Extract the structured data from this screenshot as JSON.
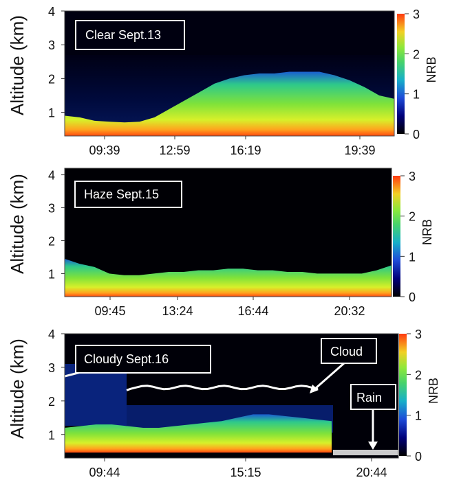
{
  "chart_data": [
    {
      "type": "heatmap",
      "title": "",
      "annotation": "Clear Sept.13",
      "ylabel": "Altitude (km)",
      "ylim": [
        0.3,
        4
      ],
      "yticks": [
        1,
        2,
        3,
        4
      ],
      "xticks": [
        "09:39",
        "12:59",
        "16:19",
        "19:39"
      ],
      "colorbar": {
        "label": "NRB",
        "range": [
          0,
          3
        ],
        "ticks": [
          0,
          1,
          2,
          3
        ]
      },
      "layer_top_km": [
        0.9,
        0.85,
        0.75,
        0.72,
        0.7,
        0.72,
        0.85,
        1.1,
        1.35,
        1.6,
        1.85,
        2.0,
        2.1,
        2.15,
        2.15,
        2.2,
        2.2,
        2.2,
        2.1,
        1.95,
        1.75,
        1.5,
        1.4
      ]
    },
    {
      "type": "heatmap",
      "title": "",
      "annotation": "Haze Sept.15",
      "ylabel": "Altitude (km)",
      "ylim": [
        0.3,
        4.2
      ],
      "yticks": [
        1,
        2,
        3,
        4
      ],
      "xticks": [
        "09:45",
        "13:24",
        "16:44",
        "20:32"
      ],
      "colorbar": {
        "label": "NRB",
        "range": [
          0,
          3
        ],
        "ticks": [
          0,
          1,
          2,
          3
        ]
      },
      "layer_top_km": [
        1.45,
        1.3,
        1.2,
        1.0,
        0.95,
        0.95,
        1.0,
        1.05,
        1.05,
        1.1,
        1.1,
        1.15,
        1.15,
        1.1,
        1.1,
        1.05,
        1.05,
        1.0,
        1.0,
        1.0,
        1.0,
        1.1,
        1.25
      ]
    },
    {
      "type": "heatmap",
      "title": "",
      "annotation": "Cloudy Sept.16",
      "ylabel": "Altitude (km)",
      "ylim": [
        0.3,
        4
      ],
      "yticks": [
        1,
        2,
        3,
        4
      ],
      "xticks": [
        "09:44",
        "15:15",
        "20:44"
      ],
      "colorbar": {
        "label": "NRB",
        "range": [
          0,
          3
        ],
        "ticks": [
          0,
          1,
          2,
          3
        ]
      },
      "callouts": [
        "Cloud",
        "Rain"
      ],
      "layer_top_km": [
        1.2,
        1.25,
        1.3,
        1.3,
        1.25,
        1.2,
        1.2,
        1.25,
        1.3,
        1.35,
        1.4,
        1.5,
        1.6,
        1.6,
        1.55,
        1.5,
        1.45,
        1.4
      ],
      "cloud_altitude_km": 2.4
    }
  ]
}
